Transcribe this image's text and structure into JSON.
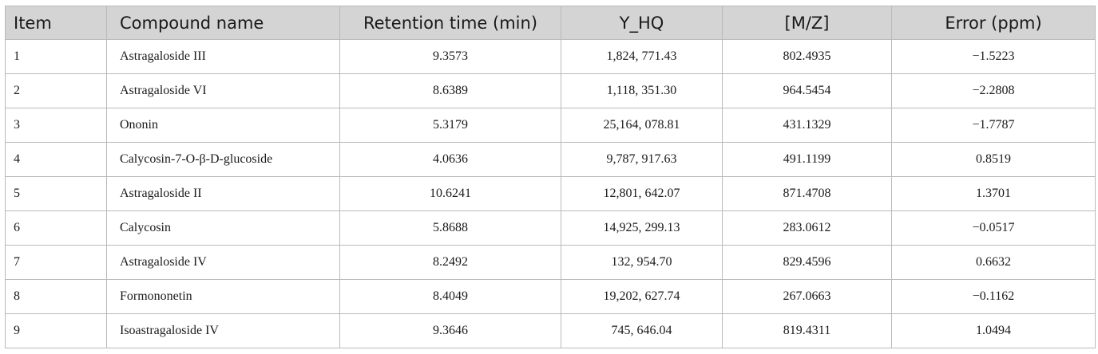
{
  "table": {
    "headers": [
      "Item",
      "Compound name",
      "Retention time (min)",
      "Y_HQ",
      "[M/Z]",
      "Error (ppm)"
    ],
    "rows": [
      [
        "1",
        "Astragaloside III",
        "9.3573",
        "1,824, 771.43",
        "802.4935",
        "−1.5223"
      ],
      [
        "2",
        "Astragaloside VI",
        "8.6389",
        "1,118, 351.30",
        "964.5454",
        "−2.2808"
      ],
      [
        "3",
        "Ononin",
        "5.3179",
        "25,164, 078.81",
        "431.1329",
        "−1.7787"
      ],
      [
        "4",
        "Calycosin-7-O-β-D-glucoside",
        "4.0636",
        "9,787, 917.63",
        "491.1199",
        "0.8519"
      ],
      [
        "5",
        "Astragaloside II",
        "10.6241",
        "12,801, 642.07",
        "871.4708",
        "1.3701"
      ],
      [
        "6",
        "Calycosin",
        "5.8688",
        "14,925, 299.13",
        "283.0612",
        "−0.0517"
      ],
      [
        "7",
        "Astragaloside IV",
        "8.2492",
        "132, 954.70",
        "829.4596",
        "0.6632"
      ],
      [
        "8",
        "Formononetin",
        "8.4049",
        "19,202, 627.74",
        "267.0663",
        "−0.1162"
      ],
      [
        "9",
        "Isoastragaloside IV",
        "9.3646",
        "745, 646.04",
        "819.4311",
        "1.0494"
      ]
    ]
  }
}
